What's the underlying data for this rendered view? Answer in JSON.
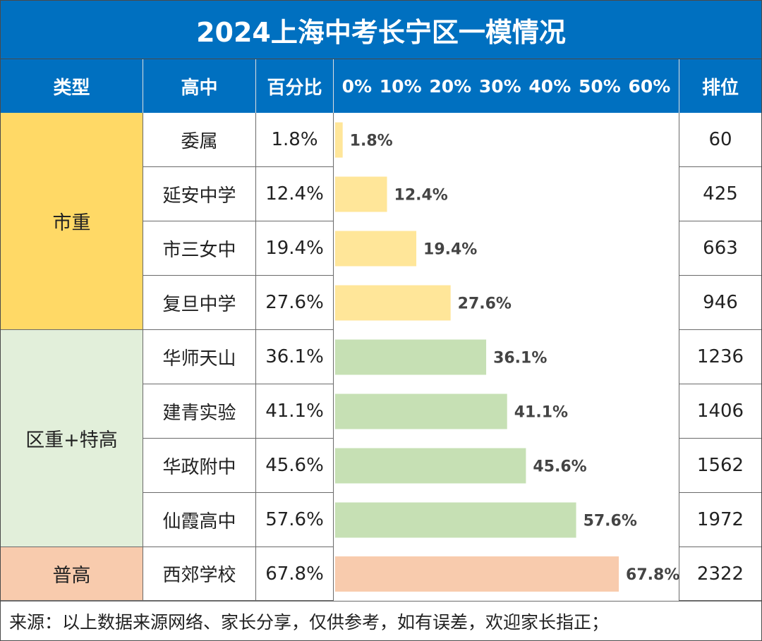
{
  "title": "2024上海中考长宁区一模情况",
  "headers": {
    "type": "类型",
    "school": "高中",
    "percent": "百分比",
    "axis_ticks": "0% 10% 20% 30% 40% 50% 60%",
    "rank": "排位"
  },
  "categories": [
    {
      "label": "市重",
      "color": "#ffd966",
      "bar_color": "#ffe699"
    },
    {
      "label": "区重+特高",
      "color": "#e2efda",
      "bar_color": "#c6e0b4"
    },
    {
      "label": "普高",
      "color": "#f8cbad",
      "bar_color": "#f8cbad"
    }
  ],
  "rows": [
    {
      "school": "委属",
      "percent": "1.8%",
      "rank": "60",
      "category": 0
    },
    {
      "school": "延安中学",
      "percent": "12.4%",
      "rank": "425",
      "category": 0
    },
    {
      "school": "市三女中",
      "percent": "19.4%",
      "rank": "663",
      "category": 0
    },
    {
      "school": "复旦中学",
      "percent": "27.6%",
      "rank": "946",
      "category": 0
    },
    {
      "school": "华师天山",
      "percent": "36.1%",
      "rank": "1236",
      "category": 1
    },
    {
      "school": "建青实验",
      "percent": "41.1%",
      "rank": "1406",
      "category": 1
    },
    {
      "school": "华政附中",
      "percent": "45.6%",
      "rank": "1562",
      "category": 1
    },
    {
      "school": "仙霞高中",
      "percent": "57.6%",
      "rank": "1972",
      "category": 1
    },
    {
      "school": "西郊学校",
      "percent": "67.8%",
      "rank": "2322",
      "category": 2
    }
  ],
  "chart_data": {
    "type": "bar",
    "orientation": "horizontal",
    "categories": [
      "委属",
      "延安中学",
      "市三女中",
      "复旦中学",
      "华师天山",
      "建青实验",
      "华政附中",
      "仙霞高中",
      "西郊学校"
    ],
    "values": [
      1.8,
      12.4,
      19.4,
      27.6,
      36.1,
      41.1,
      45.6,
      57.6,
      67.8
    ],
    "data_labels": [
      "1.8%",
      "12.4%",
      "19.4%",
      "27.6%",
      "36.1%",
      "41.1%",
      "45.6%",
      "57.6%",
      "67.8%"
    ],
    "xlim": [
      0,
      70
    ],
    "grid": false
  },
  "footer": "来源：以上数据来源网络、家长分享，仅供参考，如有误差，欢迎家长指正；"
}
